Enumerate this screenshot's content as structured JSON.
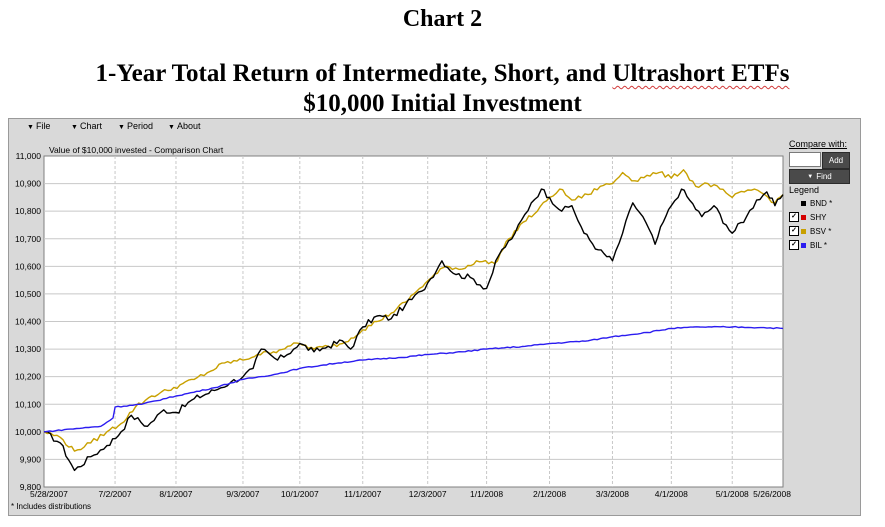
{
  "document": {
    "chart_label": "Chart 2",
    "title_line1_plain": "1-Year Total Return of Intermediate, Short, and ",
    "title_line1_flagged": "Ultrashort ETFs",
    "title_line2": "$10,000 Initial Investment"
  },
  "app": {
    "menu": [
      {
        "label": "File"
      },
      {
        "label": "Chart"
      },
      {
        "label": "Period"
      },
      {
        "label": "About"
      }
    ],
    "chart_header": "Value of $10,000 invested - Comparison Chart",
    "compare_label": "Compare with:",
    "compare_value": "",
    "add_label": "Add",
    "find_label": "Find",
    "legend_label": "Legend",
    "footnote": "* Includes distributions"
  },
  "colors": {
    "BND": "#000000",
    "SHY": "#d40000",
    "BSV": "#c8a000",
    "BIL": "#2b1cf0",
    "plot_bg": "#ffffff",
    "grid": "#c8c8c8"
  },
  "chart_data": {
    "type": "line",
    "title": "Value of $10,000 invested - Comparison Chart",
    "x_tick_labels": [
      "5/28/2007",
      "7/2/2007",
      "8/1/2007",
      "9/3/2007",
      "10/1/2007",
      "11/1/2007",
      "12/3/2007",
      "1/1/2008",
      "2/1/2008",
      "3/3/2008",
      "4/1/2008",
      "5/1/2008",
      "5/26/2008"
    ],
    "x_tick_dates": [
      "2007-05-28",
      "2007-07-02",
      "2007-08-01",
      "2007-09-03",
      "2007-10-01",
      "2007-11-01",
      "2007-12-03",
      "2008-01-01",
      "2008-02-01",
      "2008-03-03",
      "2008-04-01",
      "2008-05-01",
      "2008-05-26"
    ],
    "y_tick_labels": [
      "9,800",
      "9,900",
      "10,000",
      "10,100",
      "10,200",
      "10,300",
      "10,400",
      "10,500",
      "10,600",
      "10,700",
      "10,800",
      "10,900",
      "11,000"
    ],
    "ylim": [
      9800,
      11000
    ],
    "grid": true,
    "legend_position": "right",
    "series": [
      {
        "name": "BND *",
        "checked": false,
        "color": "#000000",
        "points": [
          [
            "2007-05-28",
            10000
          ],
          [
            "2007-06-05",
            9960
          ],
          [
            "2007-06-12",
            9860
          ],
          [
            "2007-06-20",
            9910
          ],
          [
            "2007-06-28",
            9950
          ],
          [
            "2007-07-05",
            10000
          ],
          [
            "2007-07-10",
            10060
          ],
          [
            "2007-07-18",
            10020
          ],
          [
            "2007-07-26",
            10080
          ],
          [
            "2007-08-01",
            10070
          ],
          [
            "2007-08-10",
            10120
          ],
          [
            "2007-08-20",
            10150
          ],
          [
            "2007-08-28",
            10180
          ],
          [
            "2007-09-03",
            10200
          ],
          [
            "2007-09-08",
            10230
          ],
          [
            "2007-09-12",
            10300
          ],
          [
            "2007-09-20",
            10260
          ],
          [
            "2007-09-28",
            10300
          ],
          [
            "2007-10-01",
            10320
          ],
          [
            "2007-10-08",
            10290
          ],
          [
            "2007-10-15",
            10310
          ],
          [
            "2007-10-22",
            10330
          ],
          [
            "2007-10-26",
            10300
          ],
          [
            "2007-11-01",
            10380
          ],
          [
            "2007-11-08",
            10420
          ],
          [
            "2007-11-15",
            10410
          ],
          [
            "2007-11-22",
            10460
          ],
          [
            "2007-11-30",
            10510
          ],
          [
            "2007-12-03",
            10540
          ],
          [
            "2007-12-10",
            10620
          ],
          [
            "2007-12-17",
            10570
          ],
          [
            "2007-12-24",
            10560
          ],
          [
            "2008-01-01",
            10520
          ],
          [
            "2008-01-07",
            10640
          ],
          [
            "2008-01-15",
            10720
          ],
          [
            "2008-01-23",
            10830
          ],
          [
            "2008-01-28",
            10880
          ],
          [
            "2008-02-01",
            10850
          ],
          [
            "2008-02-07",
            10800
          ],
          [
            "2008-02-12",
            10820
          ],
          [
            "2008-02-18",
            10720
          ],
          [
            "2008-02-25",
            10660
          ],
          [
            "2008-03-03",
            10620
          ],
          [
            "2008-03-08",
            10720
          ],
          [
            "2008-03-13",
            10830
          ],
          [
            "2008-03-18",
            10780
          ],
          [
            "2008-03-24",
            10680
          ],
          [
            "2008-03-28",
            10760
          ],
          [
            "2008-04-01",
            10820
          ],
          [
            "2008-04-06",
            10880
          ],
          [
            "2008-04-10",
            10840
          ],
          [
            "2008-04-16",
            10780
          ],
          [
            "2008-04-22",
            10820
          ],
          [
            "2008-04-28",
            10750
          ],
          [
            "2008-05-01",
            10720
          ],
          [
            "2008-05-08",
            10780
          ],
          [
            "2008-05-13",
            10840
          ],
          [
            "2008-05-18",
            10870
          ],
          [
            "2008-05-22",
            10820
          ],
          [
            "2008-05-26",
            10860
          ]
        ]
      },
      {
        "name": "SHY",
        "checked": true,
        "color": "#d40000",
        "points": []
      },
      {
        "name": "BSV *",
        "checked": true,
        "color": "#c8a000",
        "points": [
          [
            "2007-05-28",
            10000
          ],
          [
            "2007-06-05",
            9980
          ],
          [
            "2007-06-12",
            9930
          ],
          [
            "2007-06-20",
            9960
          ],
          [
            "2007-06-28",
            10000
          ],
          [
            "2007-07-05",
            10030
          ],
          [
            "2007-07-12",
            10090
          ],
          [
            "2007-07-20",
            10130
          ],
          [
            "2007-07-28",
            10150
          ],
          [
            "2007-08-03",
            10170
          ],
          [
            "2007-08-10",
            10190
          ],
          [
            "2007-08-18",
            10220
          ],
          [
            "2007-08-25",
            10250
          ],
          [
            "2007-09-03",
            10260
          ],
          [
            "2007-09-10",
            10280
          ],
          [
            "2007-09-18",
            10290
          ],
          [
            "2007-09-25",
            10310
          ],
          [
            "2007-10-01",
            10320
          ],
          [
            "2007-10-08",
            10300
          ],
          [
            "2007-10-15",
            10310
          ],
          [
            "2007-10-22",
            10320
          ],
          [
            "2007-11-01",
            10370
          ],
          [
            "2007-11-08",
            10400
          ],
          [
            "2007-11-15",
            10430
          ],
          [
            "2007-11-22",
            10470
          ],
          [
            "2007-11-29",
            10520
          ],
          [
            "2007-12-05",
            10560
          ],
          [
            "2007-12-12",
            10600
          ],
          [
            "2007-12-20",
            10590
          ],
          [
            "2007-12-27",
            10620
          ],
          [
            "2008-01-05",
            10610
          ],
          [
            "2008-01-12",
            10700
          ],
          [
            "2008-01-19",
            10760
          ],
          [
            "2008-01-26",
            10800
          ],
          [
            "2008-02-01",
            10850
          ],
          [
            "2008-02-06",
            10880
          ],
          [
            "2008-02-12",
            10840
          ],
          [
            "2008-02-20",
            10860
          ],
          [
            "2008-02-26",
            10890
          ],
          [
            "2008-03-03",
            10900
          ],
          [
            "2008-03-08",
            10940
          ],
          [
            "2008-03-14",
            10910
          ],
          [
            "2008-03-20",
            10930
          ],
          [
            "2008-03-26",
            10940
          ],
          [
            "2008-04-01",
            10920
          ],
          [
            "2008-04-07",
            10950
          ],
          [
            "2008-04-13",
            10890
          ],
          [
            "2008-04-19",
            10900
          ],
          [
            "2008-04-25",
            10880
          ],
          [
            "2008-05-01",
            10850
          ],
          [
            "2008-05-07",
            10870
          ],
          [
            "2008-05-12",
            10880
          ],
          [
            "2008-05-17",
            10860
          ],
          [
            "2008-05-22",
            10830
          ],
          [
            "2008-05-26",
            10860
          ]
        ]
      },
      {
        "name": "BIL *",
        "checked": true,
        "color": "#2b1cf0",
        "points": [
          [
            "2007-05-28",
            10000
          ],
          [
            "2007-06-10",
            10010
          ],
          [
            "2007-06-25",
            10020
          ],
          [
            "2007-07-01",
            10050
          ],
          [
            "2007-07-02",
            10090
          ],
          [
            "2007-07-15",
            10100
          ],
          [
            "2007-08-01",
            10130
          ],
          [
            "2007-08-20",
            10160
          ],
          [
            "2007-09-03",
            10190
          ],
          [
            "2007-09-20",
            10210
          ],
          [
            "2007-10-01",
            10230
          ],
          [
            "2007-10-20",
            10250
          ],
          [
            "2007-11-01",
            10260
          ],
          [
            "2007-11-20",
            10270
          ],
          [
            "2007-12-03",
            10280
          ],
          [
            "2007-12-20",
            10290
          ],
          [
            "2008-01-01",
            10300
          ],
          [
            "2008-01-20",
            10310
          ],
          [
            "2008-02-01",
            10320
          ],
          [
            "2008-02-20",
            10330
          ],
          [
            "2008-03-03",
            10345
          ],
          [
            "2008-03-20",
            10360
          ],
          [
            "2008-04-01",
            10375
          ],
          [
            "2008-04-15",
            10380
          ],
          [
            "2008-05-01",
            10380
          ],
          [
            "2008-05-15",
            10378
          ],
          [
            "2008-05-26",
            10375
          ]
        ]
      }
    ]
  }
}
